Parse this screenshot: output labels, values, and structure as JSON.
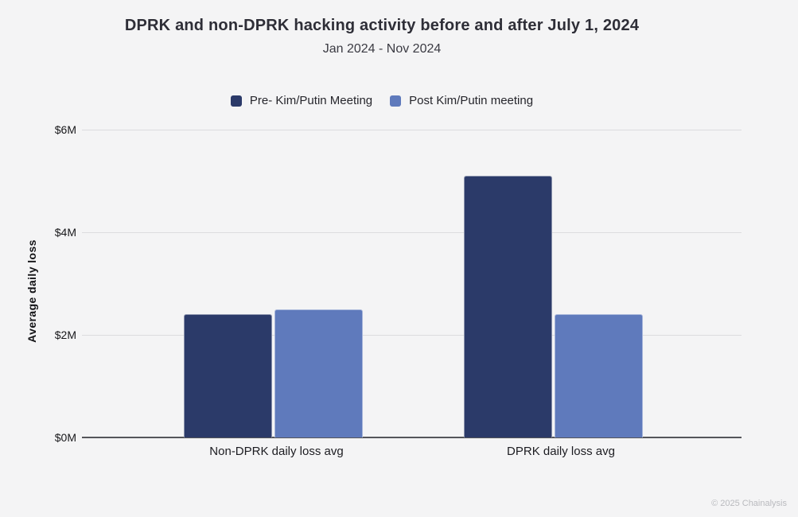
{
  "page": {
    "background": "#f4f4f5",
    "copyright": "© 2025 Chainalysis"
  },
  "chart_data": {
    "type": "bar",
    "title": "DPRK and non-DPRK hacking activity before and after July 1, 2024",
    "subtitle": "Jan 2024 - Nov 2024",
    "ylabel": "Average daily loss",
    "xlabel": "",
    "categories": [
      "Non-DPRK daily loss avg",
      "DPRK daily loss avg"
    ],
    "series": [
      {
        "name": "Pre- Kim/Putin Meeting",
        "color": "#2b3a69",
        "values": [
          2.4,
          5.1
        ]
      },
      {
        "name": "Post Kim/Putin meeting",
        "color": "#5f7abc",
        "values": [
          2.5,
          2.4
        ]
      }
    ],
    "value_unit": "million USD per day",
    "ylim": [
      0,
      6
    ],
    "yticks": [
      0,
      2,
      4,
      6
    ],
    "ytick_labels": [
      "$0M",
      "$2M",
      "$4M",
      "$6M"
    ],
    "grid": true,
    "legend_position": "top-center"
  },
  "colors": {
    "gridline": "#dcdcde",
    "axis_line": "#55565a",
    "pre_series": "#2b3a69",
    "post_series": "#5f7abc"
  }
}
